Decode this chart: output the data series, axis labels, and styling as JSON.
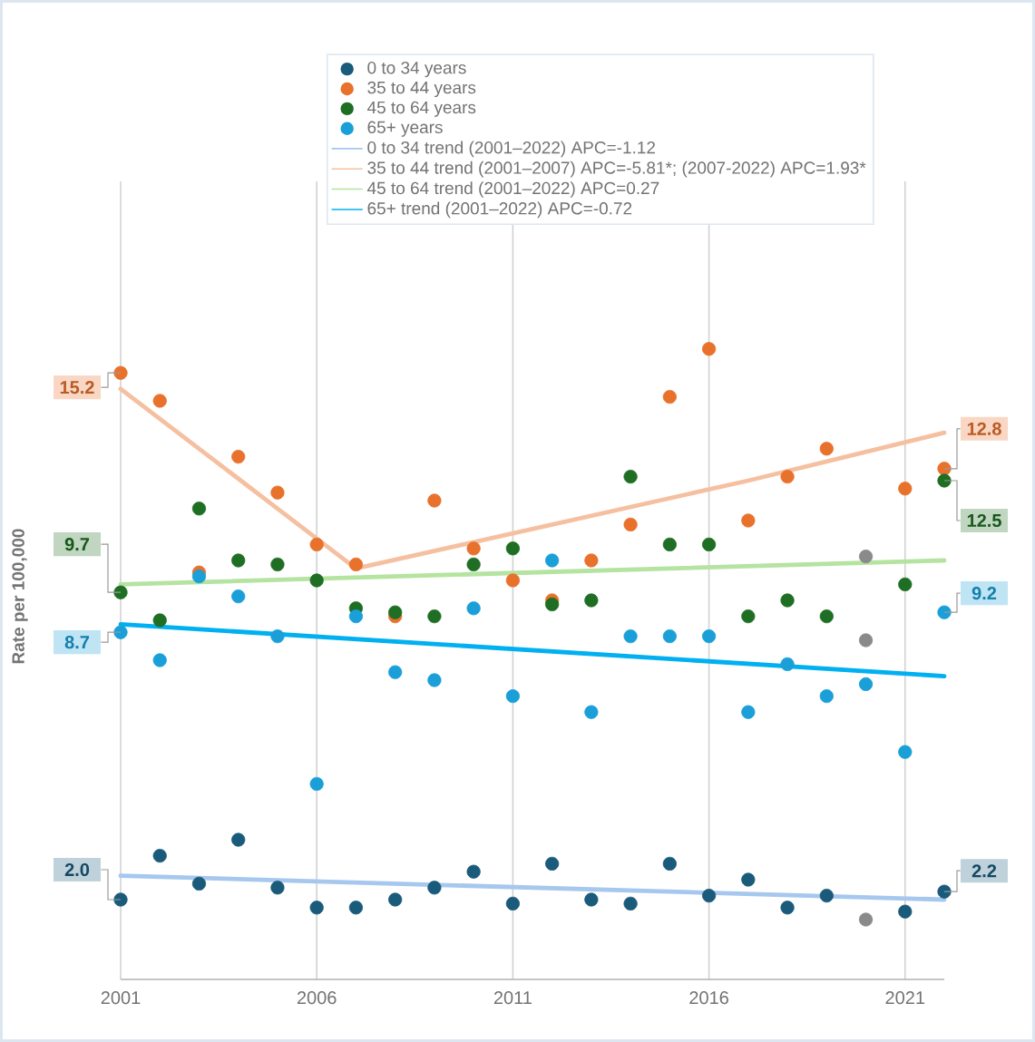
{
  "chart_data": {
    "type": "scatter",
    "ylabel": "Rate per 100,000",
    "x": [
      2001,
      2002,
      2003,
      2004,
      2005,
      2006,
      2007,
      2008,
      2009,
      2010,
      2011,
      2012,
      2013,
      2014,
      2015,
      2016,
      2017,
      2018,
      2019,
      2020,
      2021,
      2022
    ],
    "xlim": [
      2001,
      2022
    ],
    "xticks": [
      2001,
      2006,
      2011,
      2016,
      2021
    ],
    "ylim": [
      0,
      20
    ],
    "grid": "x",
    "legend": "top",
    "tick_labels": "x",
    "marker": "circle",
    "series": [
      {
        "name": "0 to 34 years",
        "color": "#1a5a7a",
        "values": [
          2.0,
          3.1,
          2.4,
          3.5,
          2.3,
          1.8,
          1.8,
          2.0,
          2.3,
          2.7,
          1.9,
          2.9,
          2.0,
          1.9,
          2.9,
          2.1,
          2.5,
          1.8,
          2.1,
          1.5,
          1.7,
          2.2
        ],
        "colors": [
          null,
          null,
          null,
          null,
          null,
          null,
          null,
          null,
          null,
          null,
          null,
          null,
          null,
          null,
          null,
          null,
          null,
          null,
          null,
          "#8a8a8a",
          null,
          null
        ],
        "value_labels": [
          "2.0",
          null,
          null,
          null,
          null,
          null,
          null,
          null,
          null,
          null,
          null,
          null,
          null,
          null,
          null,
          null,
          null,
          null,
          null,
          null,
          null,
          "2.2"
        ]
      },
      {
        "name": "35 to 44 years",
        "color": "#e8712c",
        "values": [
          15.2,
          14.5,
          10.2,
          13.1,
          12.2,
          10.9,
          10.4,
          9.1,
          12.0,
          10.8,
          10.0,
          9.5,
          10.5,
          11.4,
          14.6,
          15.8,
          11.5,
          12.6,
          13.3,
          10.6,
          12.3,
          12.8
        ],
        "colors": [
          null,
          null,
          null,
          null,
          null,
          null,
          null,
          null,
          null,
          null,
          null,
          null,
          null,
          null,
          null,
          null,
          null,
          null,
          null,
          "#8a8a8a",
          null,
          null
        ],
        "value_labels": [
          "15.2",
          null,
          null,
          null,
          null,
          null,
          null,
          null,
          null,
          null,
          null,
          null,
          null,
          null,
          null,
          null,
          null,
          null,
          null,
          null,
          null,
          "12.8"
        ]
      },
      {
        "name": "45 to 64 years",
        "color": "#1e6e23",
        "values": [
          9.7,
          9.0,
          11.8,
          10.5,
          10.4,
          10.0,
          9.3,
          9.2,
          9.1,
          10.4,
          10.8,
          9.4,
          9.5,
          12.6,
          10.9,
          10.9,
          9.1,
          9.5,
          9.1,
          8.5,
          9.9,
          12.5
        ],
        "colors": [
          null,
          null,
          null,
          null,
          null,
          null,
          null,
          null,
          null,
          null,
          null,
          null,
          null,
          null,
          null,
          null,
          null,
          null,
          null,
          "#8a8a8a",
          null,
          null
        ],
        "value_labels": [
          "9.7",
          null,
          null,
          null,
          null,
          null,
          null,
          null,
          null,
          null,
          null,
          null,
          null,
          null,
          null,
          null,
          null,
          null,
          null,
          null,
          null,
          "12.5"
        ]
      },
      {
        "name": "65+ years",
        "color": "#1a9fd8",
        "values": [
          8.7,
          8.0,
          10.1,
          9.6,
          8.6,
          4.9,
          9.1,
          7.7,
          7.5,
          9.3,
          7.1,
          10.5,
          6.7,
          8.6,
          8.6,
          8.6,
          6.7,
          7.9,
          7.1,
          7.4,
          5.7,
          9.2
        ],
        "value_labels": [
          "8.7",
          null,
          null,
          null,
          null,
          null,
          null,
          null,
          null,
          null,
          null,
          null,
          null,
          null,
          null,
          null,
          null,
          null,
          null,
          null,
          null,
          "9.2"
        ]
      },
      {
        "name": "0 to 34 trend (2001–2022) APC=-1.12",
        "type": "line",
        "marker": "none",
        "color": "#a6c8ee",
        "x": [
          2001,
          2022
        ],
        "values": [
          2.6,
          2.0
        ]
      },
      {
        "name": "35 to 44 trend (2001–2007) APC=-5.81*; (2007-2022) APC=1.93*",
        "type": "line",
        "marker": "none",
        "color": "#f5c0a0",
        "x": [
          2001,
          2003,
          2005,
          2007,
          2012,
          2017,
          2022
        ],
        "values": [
          14.8,
          13.3,
          11.8,
          10.3,
          11.4,
          12.5,
          13.7
        ]
      },
      {
        "name": "45 to 64 trend (2001–2022) APC=0.27",
        "type": "line",
        "marker": "none",
        "color": "#b5e3a0",
        "x": [
          2001,
          2022
        ],
        "values": [
          9.9,
          10.5
        ]
      },
      {
        "name": "65+ trend (2001–2022) APC=-0.72",
        "type": "line",
        "marker": "none",
        "color": "#00b0f0",
        "x": [
          2001,
          2022
        ],
        "values": [
          8.9,
          7.6
        ]
      }
    ]
  }
}
